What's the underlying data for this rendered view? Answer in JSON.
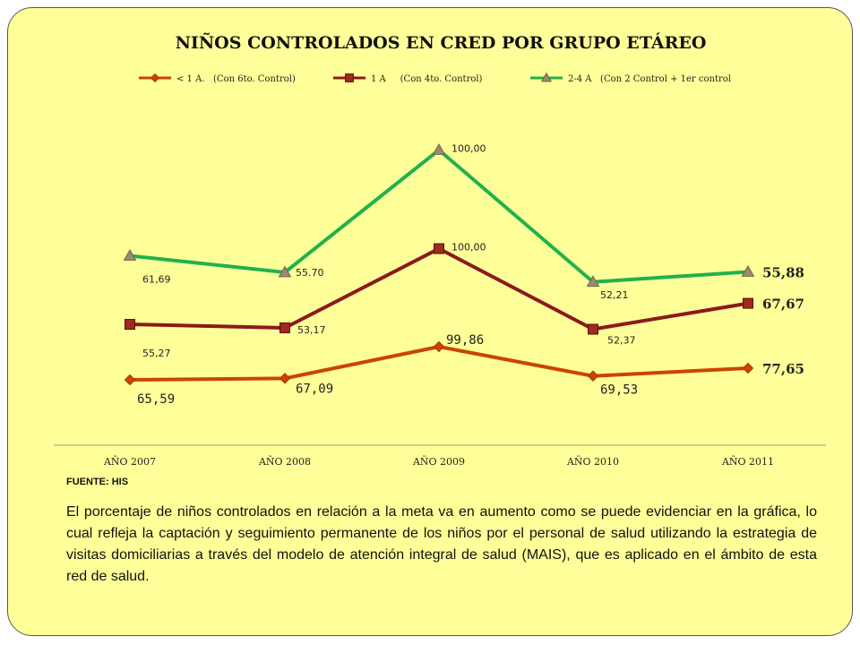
{
  "page": {
    "source": "FUENTE: HIS",
    "paragraph": "El porcentaje de niños controlados en relación a la meta va en aumento como se puede evidenciar en la gráfica, lo cual refleja la captación y seguimiento permanente de los niños por el personal de salud utilizando la estrategia de visitas domiciliarias a través del modelo de atención integral de salud (MAIS), que es aplicado en el ámbito de esta red de salud."
  },
  "chart_data": {
    "type": "line",
    "title": "NIÑOS CONTROLADOS EN CRED POR GRUPO ETÁREO",
    "categories": [
      "AÑO 2007",
      "AÑO 2008",
      "AÑO 2009",
      "AÑO 2010",
      "AÑO 2011"
    ],
    "legend_position": "top",
    "grid": false,
    "series": [
      {
        "name": "< 1 A.   (Con 6to. Control)",
        "color": "#cc4400",
        "marker": "diamond",
        "values": [
          65.59,
          67.09,
          99.86,
          69.53,
          77.65
        ],
        "labels": [
          "65,59",
          "67,09",
          "99,86",
          "69,53",
          "77,65"
        ]
      },
      {
        "name": "1 A     (Con 4to. Control)",
        "color": "#8b1a1a",
        "marker": "square",
        "values": [
          55.27,
          53.17,
          100.0,
          52.37,
          67.67
        ],
        "labels": [
          "55,27",
          "53,17",
          "100,00",
          "52,37",
          "67,67"
        ]
      },
      {
        "name": "2-4 A   (Con 2 Control + 1er control",
        "color": "#22b14c",
        "marker": "triangle",
        "values": [
          61.69,
          55.7,
          100.0,
          52.21,
          55.88
        ],
        "labels": [
          "61,69",
          "55.70",
          "100,00",
          "52,21",
          "55,88"
        ]
      }
    ]
  }
}
